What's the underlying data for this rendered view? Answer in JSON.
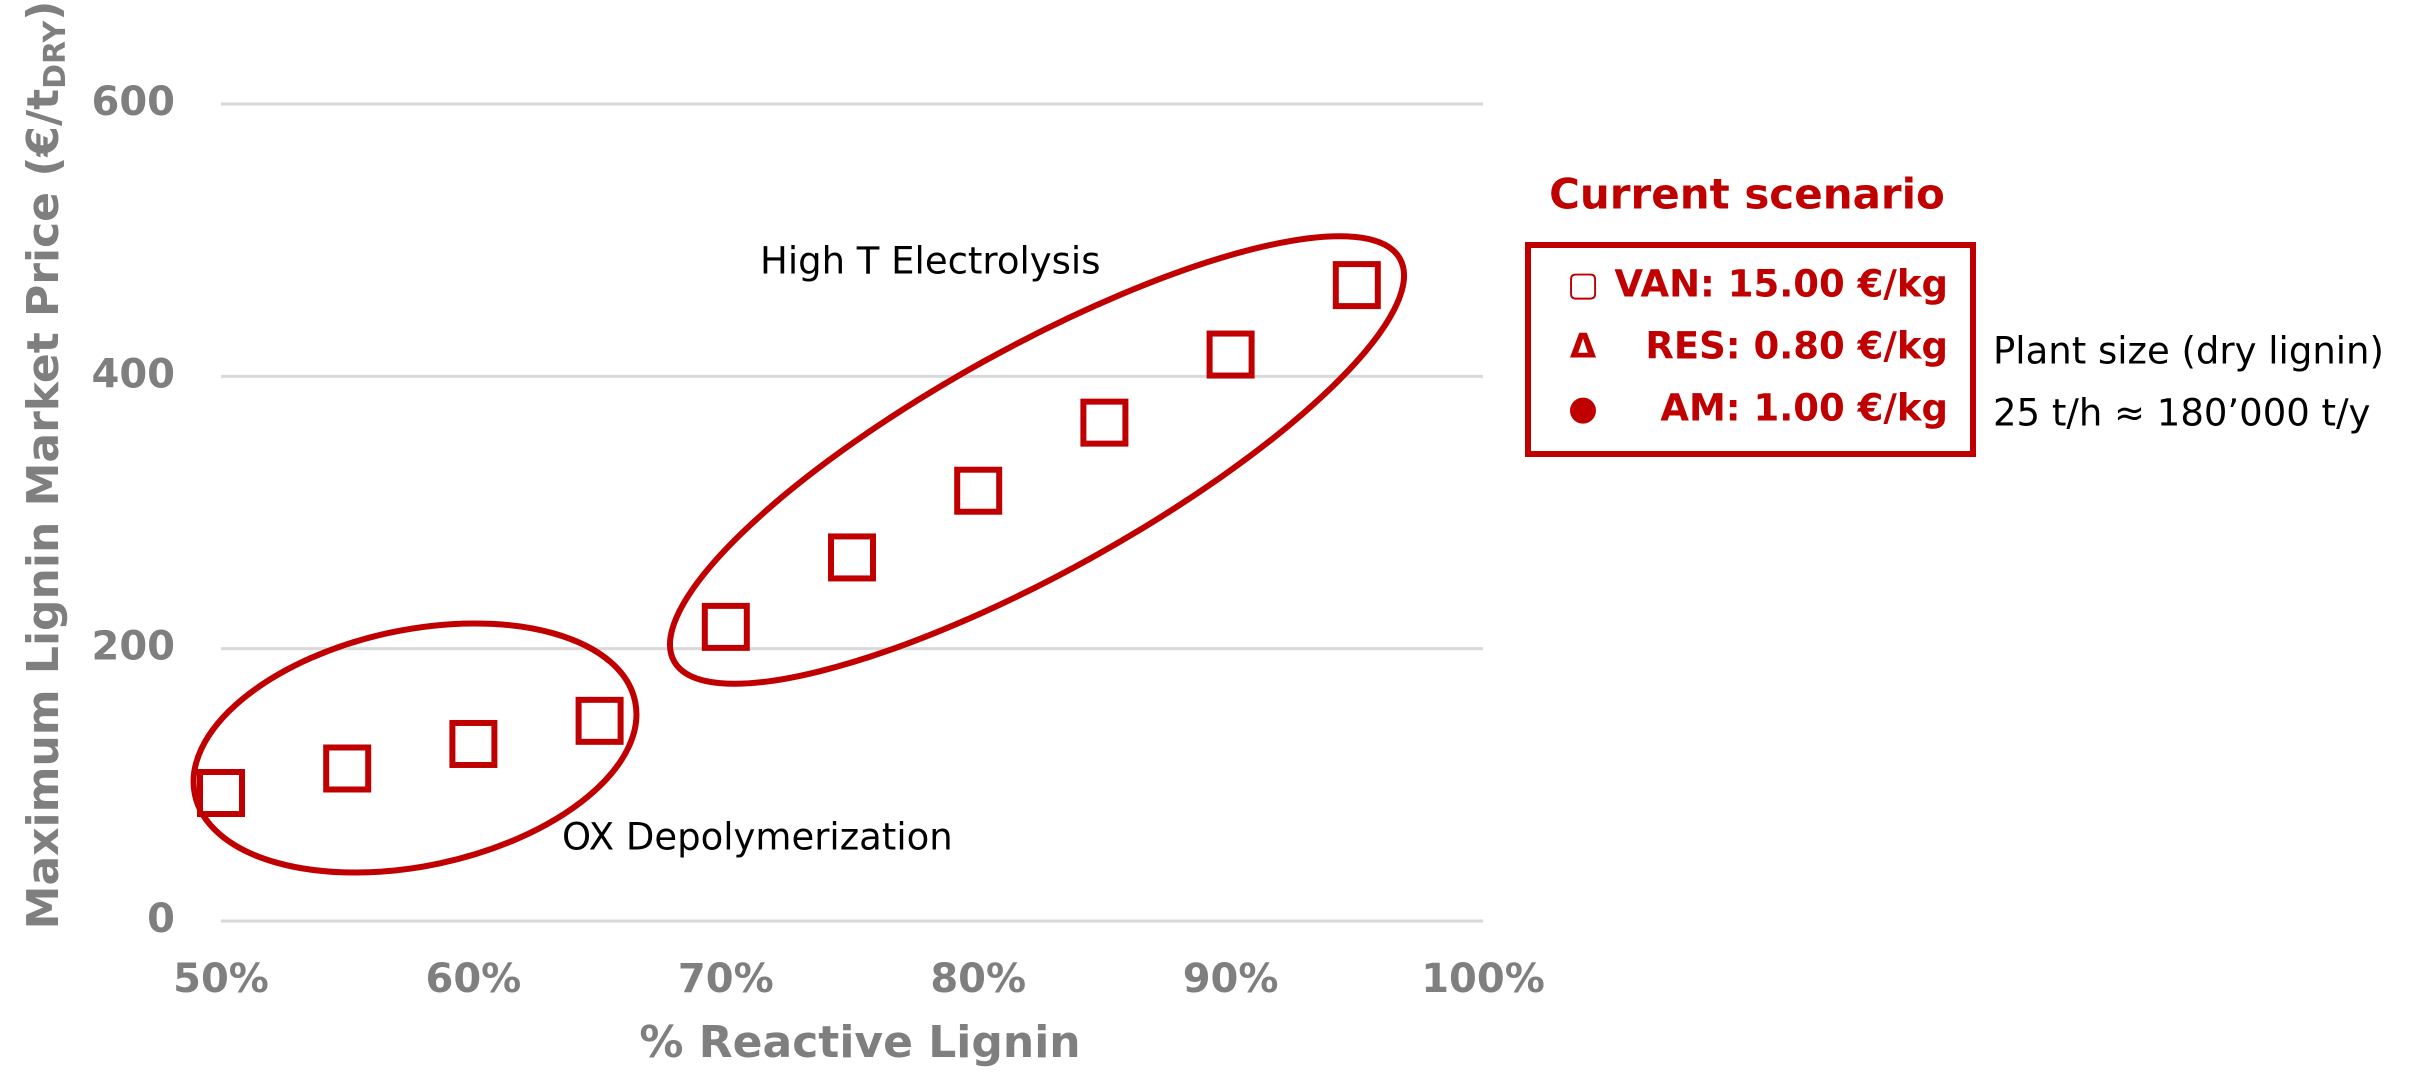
{
  "chart_data": {
    "type": "line",
    "x_label": "% Reactive Lignin",
    "y_label": "Maximum Lignin Market Price (€/t",
    "y_label_sub": "DRY",
    "y_label_end": ")",
    "x": [
      50,
      55,
      60,
      65,
      70,
      75,
      80,
      85,
      90,
      95
    ],
    "series": [
      {
        "color": "#c00000",
        "line_color": "#000000",
        "values": [
          94,
          112,
          130,
          147,
          216,
          267,
          316,
          366,
          416,
          467
        ]
      }
    ],
    "xlim": [
      50,
      100
    ],
    "xticks": [
      {
        "value": 50,
        "label": "50%"
      },
      {
        "value": 60,
        "label": "60%"
      },
      {
        "value": 70,
        "label": "70%"
      },
      {
        "value": 80,
        "label": "80%"
      },
      {
        "value": 90,
        "label": "90%"
      },
      {
        "value": 100,
        "label": "100%"
      }
    ],
    "ylim": [
      0,
      600
    ],
    "yticks": [
      0,
      200,
      400,
      600
    ],
    "grid": true,
    "annotations": [
      "High T Electrolysis",
      "OX Depolymerization"
    ],
    "scenario": {
      "title": "Current scenario",
      "items": [
        {
          "symbol": "▢",
          "text": "VAN: 15.00 €/kg"
        },
        {
          "symbol": "Δ",
          "text": "RES: 0.80 €/kg"
        },
        {
          "symbol": "●",
          "text": "AM: 1.00 €/kg"
        }
      ]
    },
    "note": [
      "Plant size (dry lignin)",
      "25 t/h ≈ 180’000 t/y"
    ]
  }
}
